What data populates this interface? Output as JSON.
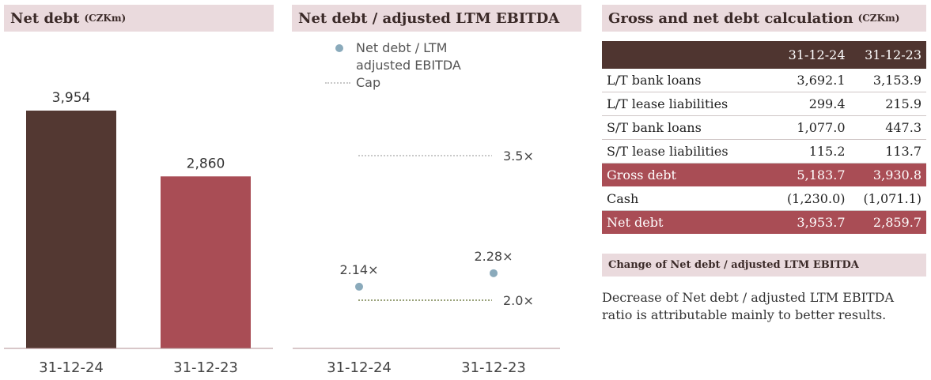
{
  "colors": {
    "bar_2024": "#533832",
    "bar_2023": "#a94d55",
    "header_bg": "#eadadd",
    "dot": "#8aaabb",
    "cap_high": "#c9c9c9",
    "cap_low": "#9aa27a"
  },
  "panel1": {
    "title": "Net debt",
    "unit": "(CZKm)"
  },
  "panel2": {
    "title": "Net debt / adjusted LTM EBITDA"
  },
  "panel3": {
    "title": "Gross and net debt calculation",
    "unit": "(CZKm)"
  },
  "chart_data": [
    {
      "type": "bar",
      "title": "Net debt",
      "categories": [
        "31-12-24",
        "31-12-23"
      ],
      "values": [
        3954,
        2860
      ],
      "value_labels": [
        "3,954",
        "2,860"
      ],
      "ylim": [
        0,
        4500
      ],
      "grid": false
    },
    {
      "type": "scatter",
      "title": "Net debt / adjusted LTM EBITDA",
      "categories": [
        "31-12-24",
        "31-12-23"
      ],
      "series": [
        {
          "name": "Net debt / LTM adjusted EBITDA",
          "values": [
            2.14,
            2.28
          ],
          "labels": [
            "2.14×",
            "2.28×"
          ]
        }
      ],
      "caps": {
        "name": "Cap",
        "values": [
          3.5,
          2.0
        ],
        "labels": [
          "3.5×",
          "2.0×"
        ]
      },
      "legend": [
        "Net debt / LTM adjusted EBITDA",
        "Cap"
      ],
      "legend_position": "top-left",
      "grid": false
    }
  ],
  "table": {
    "columns": [
      "31-12-24",
      "31-12-23"
    ],
    "rows": [
      {
        "label": "L/T bank loans",
        "v1": "3,692.1",
        "v2": "3,153.9"
      },
      {
        "label": "L/T lease liabilities",
        "v1": "299.4",
        "v2": "215.9"
      },
      {
        "label": "S/T bank loans",
        "v1": "1,077.0",
        "v2": "447.3"
      },
      {
        "label": "S/T lease liabilities",
        "v1": "115.2",
        "v2": "113.7"
      },
      {
        "label": "Gross debt",
        "v1": "5,183.7",
        "v2": "3,930.8"
      },
      {
        "label": "Cash",
        "v1": "(1,230.0)",
        "v2": "(1,071.1)"
      },
      {
        "label": "Net debt",
        "v1": "3,953.7",
        "v2": "2,859.7"
      }
    ]
  },
  "change": {
    "title": "Change of Net debt / adjusted LTM EBITDA",
    "text": "Decrease of Net debt / adjusted LTM EBITDA ratio is attributable mainly to better results."
  }
}
